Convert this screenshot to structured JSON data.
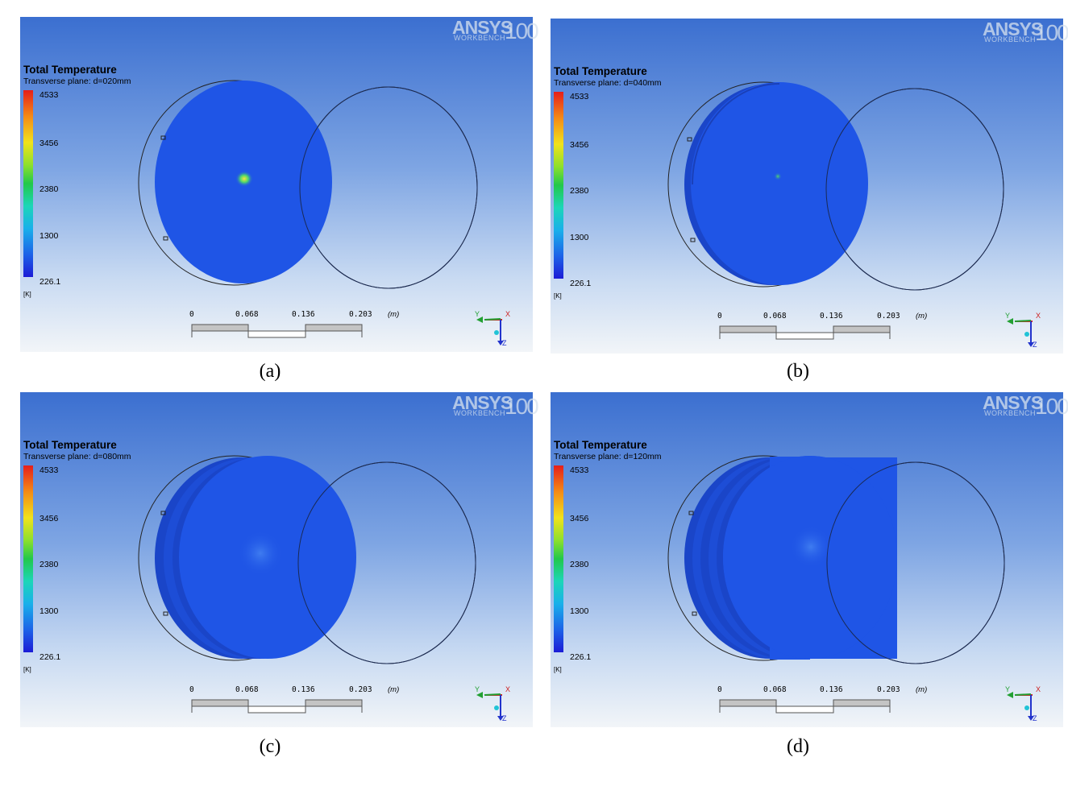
{
  "panels": [
    {
      "id": "a",
      "logo": {
        "brand": "ANSYS",
        "sub": "WORKBENCH",
        "version": "100"
      },
      "title": "Total Temperature",
      "subtitle": "Transverse plane: d=020mm",
      "legend": {
        "max": "4533",
        "t2": "3456",
        "t3": "2380",
        "t4": "1300",
        "min": "226.1",
        "unit": "[K]"
      },
      "scale": {
        "l0": "0",
        "l1": "0.068",
        "l2": "0.136",
        "l3": "0.203",
        "unit": "(m)"
      },
      "axes": {
        "y": "Y",
        "x": "X",
        "z": "Z"
      },
      "caption": "(a)"
    },
    {
      "id": "b",
      "logo": {
        "brand": "ANSYS",
        "sub": "WORKBENCH",
        "version": "100"
      },
      "title": "Total Temperature",
      "subtitle": "Transverse plane: d=040mm",
      "legend": {
        "max": "4533",
        "t2": "3456",
        "t3": "2380",
        "t4": "1300",
        "min": "226.1",
        "unit": "[K]"
      },
      "scale": {
        "l0": "0",
        "l1": "0.068",
        "l2": "0.136",
        "l3": "0.203",
        "unit": "(m)"
      },
      "axes": {
        "y": "Y",
        "x": "X",
        "z": "Z"
      },
      "caption": "(b)"
    },
    {
      "id": "c",
      "logo": {
        "brand": "ANSYS",
        "sub": "WORKBENCH",
        "version": "100"
      },
      "title": "Total Temperature",
      "subtitle": "Transverse plane: d=080mm",
      "legend": {
        "max": "4533",
        "t2": "3456",
        "t3": "2380",
        "t4": "1300",
        "min": "226.1",
        "unit": "[K]"
      },
      "scale": {
        "l0": "0",
        "l1": "0.068",
        "l2": "0.136",
        "l3": "0.203",
        "unit": "(m)"
      },
      "axes": {
        "y": "Y",
        "x": "X",
        "z": "Z"
      },
      "caption": "(c)"
    },
    {
      "id": "d",
      "logo": {
        "brand": "ANSYS",
        "sub": "WORKBENCH",
        "version": "100"
      },
      "title": "Total Temperature",
      "subtitle": "Transverse plane: d=120mm",
      "legend": {
        "max": "4533",
        "t2": "3456",
        "t3": "2380",
        "t4": "1300",
        "min": "226.1",
        "unit": "[K]"
      },
      "scale": {
        "l0": "0",
        "l1": "0.068",
        "l2": "0.136",
        "l3": "0.203",
        "unit": "(m)"
      },
      "axes": {
        "y": "Y",
        "x": "X",
        "z": "Z"
      },
      "caption": "(d)"
    }
  ],
  "colors": {
    "contour_fill": "#1f55e6",
    "contour_dark": "#1a45c8",
    "hotspot_core": "#f4e13a",
    "hotspot_ring": "#35d07a"
  }
}
